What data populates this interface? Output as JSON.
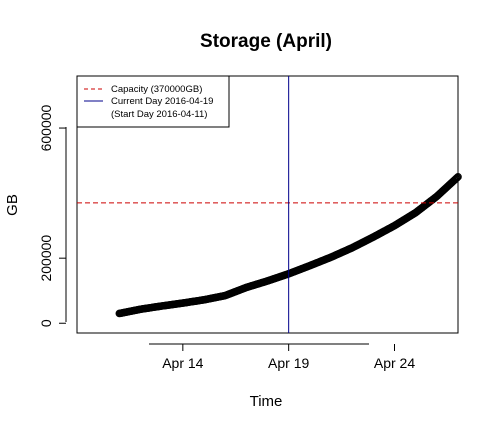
{
  "chart_data": {
    "type": "scatter",
    "title": "Storage (April)",
    "xlabel": "Time",
    "ylabel": "GB",
    "x_range": [
      "2016-04-09",
      "2016-04-27"
    ],
    "ylim": [
      -30000,
      760000
    ],
    "x_ticks": [
      {
        "date": "2016-04-14",
        "label": "Apr 14"
      },
      {
        "date": "2016-04-19",
        "label": "Apr 19"
      },
      {
        "date": "2016-04-24",
        "label": "Apr 24"
      }
    ],
    "y_ticks": [
      {
        "value": 0,
        "label": "0"
      },
      {
        "value": 200000,
        "label": "200000"
      },
      {
        "value": 600000,
        "label": "600000"
      }
    ],
    "capacity": {
      "value": 370000,
      "color": "#cc0000",
      "style": "dashed"
    },
    "current_day": {
      "date": "2016-04-19",
      "color": "#00008b"
    },
    "legend": {
      "position": "top-left",
      "entries": [
        {
          "text": "Capacity (370000GB)",
          "color": "#cc0000",
          "style": "dashed"
        },
        {
          "text": "Current Day 2016-04-19",
          "color": "#00008b",
          "style": "solid"
        },
        {
          "text": "(Start Day 2016-04-11)",
          "color": "",
          "style": "none"
        }
      ]
    },
    "series": [
      {
        "color": "#000000",
        "marker": "open-circle",
        "points": [
          {
            "x": "2016-04-11",
            "y": 30000
          },
          {
            "x": "2016-04-12",
            "y": 43000
          },
          {
            "x": "2016-04-13",
            "y": 53000
          },
          {
            "x": "2016-04-14",
            "y": 62000
          },
          {
            "x": "2016-04-15",
            "y": 72000
          },
          {
            "x": "2016-04-16",
            "y": 85000
          },
          {
            "x": "2016-04-17",
            "y": 110000
          },
          {
            "x": "2016-04-18",
            "y": 130000
          },
          {
            "x": "2016-04-19",
            "y": 152000
          },
          {
            "x": "2016-04-20",
            "y": 177000
          },
          {
            "x": "2016-04-21",
            "y": 203000
          },
          {
            "x": "2016-04-22",
            "y": 232000
          },
          {
            "x": "2016-04-23",
            "y": 265000
          },
          {
            "x": "2016-04-24",
            "y": 300000
          },
          {
            "x": "2016-04-25",
            "y": 340000
          },
          {
            "x": "2016-04-26",
            "y": 390000
          },
          {
            "x": "2016-04-27",
            "y": 450000
          }
        ]
      }
    ]
  }
}
